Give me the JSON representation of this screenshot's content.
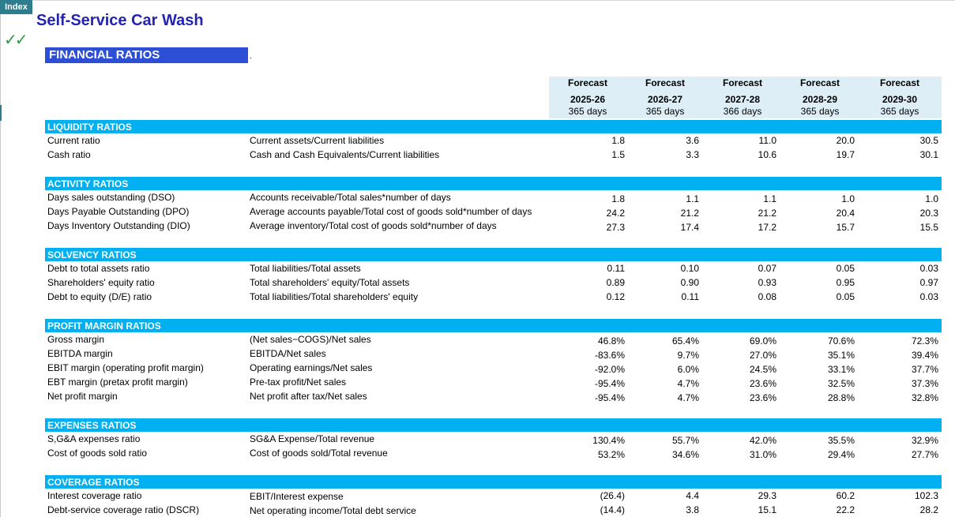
{
  "index_tab": "Index",
  "title": "Self-Service Car Wash",
  "checkmarks": "✓✓",
  "section_title": "FINANCIAL RATIOS",
  "dot": ".",
  "columns": [
    {
      "forecast": "Forecast",
      "year": "2025-26",
      "days": "365 days"
    },
    {
      "forecast": "Forecast",
      "year": "2026-27",
      "days": "365 days"
    },
    {
      "forecast": "Forecast",
      "year": "2027-28",
      "days": "366 days"
    },
    {
      "forecast": "Forecast",
      "year": "2028-29",
      "days": "365 days"
    },
    {
      "forecast": "Forecast",
      "year": "2029-30",
      "days": "365 days"
    }
  ],
  "groups": [
    {
      "title": "LIQUIDITY RATIOS",
      "rows": [
        {
          "label": "Current ratio",
          "formula": "Current assets/Current liabilities",
          "values": [
            "1.8",
            "3.6",
            "11.0",
            "20.0",
            "30.5"
          ]
        },
        {
          "label": "Cash ratio",
          "formula": "Cash and Cash Equivalents/Current liabilities",
          "values": [
            "1.5",
            "3.3",
            "10.6",
            "19.7",
            "30.1"
          ]
        }
      ]
    },
    {
      "title": "ACTIVITY RATIOS",
      "rows": [
        {
          "label": "Days sales outstanding (DSO)",
          "formula": "Accounts receivable/Total sales*number of days",
          "values": [
            "1.8",
            "1.1",
            "1.1",
            "1.0",
            "1.0"
          ]
        },
        {
          "label": "Days Payable Outstanding (DPO)",
          "formula": "Average accounts payable/Total cost of goods sold*number of days",
          "values": [
            "24.2",
            "21.2",
            "21.2",
            "20.4",
            "20.3"
          ]
        },
        {
          "label": "Days Inventory Outstanding (DIO)",
          "formula": "Average inventory/Total cost of goods sold*number of days",
          "values": [
            "27.3",
            "17.4",
            "17.2",
            "15.7",
            "15.5"
          ]
        }
      ]
    },
    {
      "title": "SOLVENCY RATIOS",
      "rows": [
        {
          "label": "Debt to total assets ratio",
          "formula": "Total liabilities/Total assets",
          "values": [
            "0.11",
            "0.10",
            "0.07",
            "0.05",
            "0.03"
          ]
        },
        {
          "label": "Shareholders' equity ratio",
          "formula": "Total shareholders' equity/Total assets",
          "values": [
            "0.89",
            "0.90",
            "0.93",
            "0.95",
            "0.97"
          ]
        },
        {
          "label": "Debt to equity (D/E) ratio",
          "formula": "Total liabilities/Total shareholders' equity",
          "values": [
            "0.12",
            "0.11",
            "0.08",
            "0.05",
            "0.03"
          ]
        }
      ]
    },
    {
      "title": "PROFIT MARGIN RATIOS",
      "rows": [
        {
          "label": "Gross margin",
          "formula": "(Net sales−COGS)/Net sales",
          "values": [
            "46.8%",
            "65.4%",
            "69.0%",
            "70.6%",
            "72.3%"
          ]
        },
        {
          "label": "EBITDA margin",
          "formula": "EBITDA/Net sales",
          "values": [
            "-83.6%",
            "9.7%",
            "27.0%",
            "35.1%",
            "39.4%"
          ]
        },
        {
          "label": "EBIT margin (operating profit margin)",
          "formula": "Operating earnings/Net sales",
          "values": [
            "-92.0%",
            "6.0%",
            "24.5%",
            "33.1%",
            "37.7%"
          ]
        },
        {
          "label": "EBT margin (pretax profit margin)",
          "formula": "Pre-tax profit/Net sales",
          "values": [
            "-95.4%",
            "4.7%",
            "23.6%",
            "32.5%",
            "37.3%"
          ]
        },
        {
          "label": "Net profit margin",
          "formula": "Net profit after tax/Net sales",
          "values": [
            "-95.4%",
            "4.7%",
            "23.6%",
            "28.8%",
            "32.8%"
          ]
        }
      ]
    },
    {
      "title": "EXPENSES RATIOS",
      "rows": [
        {
          "label": "S,G&A expenses ratio",
          "formula": "SG&A Expense/Total revenue",
          "values": [
            "130.4%",
            "55.7%",
            "42.0%",
            "35.5%",
            "32.9%"
          ]
        },
        {
          "label": "Cost of goods sold ratio",
          "formula": "Cost of goods sold/Total revenue",
          "values": [
            "53.2%",
            "34.6%",
            "31.0%",
            "29.4%",
            "27.7%"
          ]
        }
      ]
    },
    {
      "title": "COVERAGE RATIOS",
      "rows": [
        {
          "label": "Interest coverage ratio",
          "formula": "EBIT/Interest expense",
          "values": [
            "(26.4)",
            "4.4",
            "29.3",
            "60.2",
            "102.3"
          ]
        },
        {
          "label": "Debt-service coverage ratio (DSCR)",
          "formula": "Net operating income/Total debt service",
          "values": [
            "(14.4)",
            "3.8",
            "15.1",
            "22.2",
            "28.2"
          ]
        }
      ]
    }
  ]
}
